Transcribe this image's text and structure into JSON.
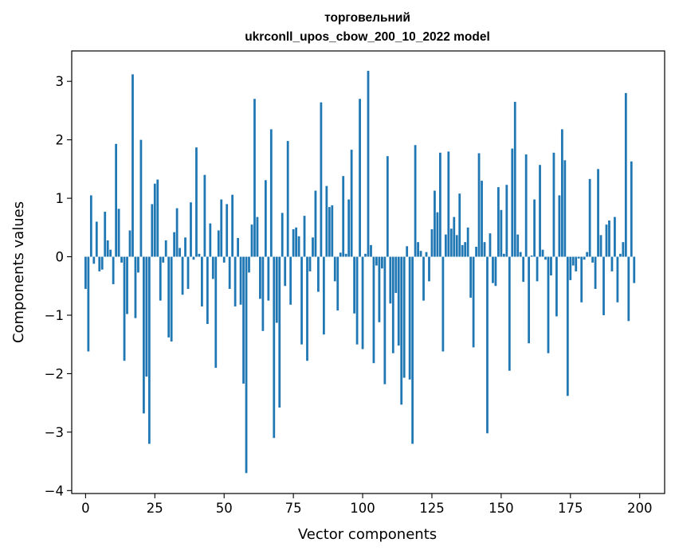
{
  "chart_data": {
    "type": "bar",
    "title_line1": "торговельний",
    "title_line2": "ukrconll_upos_cbow_200_10_2022 model",
    "xlabel": "Vector components",
    "ylabel": "Components values",
    "xlim": [
      -5,
      209
    ],
    "ylim": [
      -4.05,
      3.52
    ],
    "xticks": [
      0,
      25,
      50,
      75,
      100,
      125,
      150,
      175,
      200
    ],
    "yticks": [
      -4,
      -3,
      -2,
      -1,
      0,
      1,
      2,
      3
    ],
    "xtick_labels": [
      "0",
      "25",
      "50",
      "75",
      "100",
      "125",
      "150",
      "175",
      "200"
    ],
    "ytick_labels": [
      "−4",
      "−3",
      "−2",
      "−1",
      "0",
      "1",
      "2",
      "3"
    ],
    "bar_color": "#1f77b4",
    "values": [
      -0.55,
      -1.62,
      1.05,
      -0.12,
      0.6,
      -0.25,
      -0.22,
      0.77,
      0.28,
      0.12,
      -0.47,
      1.93,
      0.82,
      -0.1,
      -1.78,
      -0.98,
      0.45,
      3.12,
      -1.05,
      -0.27,
      2.0,
      -2.68,
      -2.05,
      -3.2,
      0.9,
      1.25,
      1.32,
      -0.75,
      -0.1,
      0.28,
      -1.38,
      -1.45,
      0.42,
      0.83,
      0.15,
      -0.65,
      0.33,
      -0.55,
      0.93,
      -0.05,
      1.87,
      0.05,
      -0.85,
      1.4,
      -1.15,
      0.57,
      -0.38,
      -1.9,
      0.45,
      0.98,
      -0.1,
      0.9,
      -0.55,
      1.06,
      -0.85,
      0.32,
      -0.82,
      -2.17,
      -3.7,
      -0.27,
      0.55,
      2.7,
      0.68,
      -0.72,
      -1.27,
      1.31,
      -0.75,
      2.18,
      -3.1,
      -1.13,
      -2.58,
      0.75,
      -0.5,
      1.98,
      -0.82,
      0.47,
      0.5,
      0.35,
      -1.5,
      0.7,
      -1.78,
      -0.25,
      0.33,
      1.13,
      -0.6,
      2.64,
      -1.33,
      1.21,
      0.85,
      0.88,
      -0.42,
      -0.92,
      0.07,
      1.38,
      0.05,
      0.98,
      1.83,
      -0.97,
      -1.5,
      2.7,
      -1.58,
      0.05,
      3.18,
      0.2,
      -1.82,
      -0.15,
      -1.12,
      -0.2,
      -2.18,
      1.72,
      -0.8,
      -1.65,
      -0.62,
      -1.52,
      -2.53,
      -2.07,
      0.18,
      -2.1,
      -3.2,
      1.91,
      0.25,
      0.1,
      -0.75,
      0.08,
      -0.42,
      0.47,
      1.13,
      0.76,
      1.78,
      -1.62,
      0.38,
      1.8,
      0.48,
      0.68,
      0.37,
      1.08,
      0.2,
      0.25,
      0.5,
      -0.7,
      -1.55,
      0.17,
      1.77,
      1.3,
      0.25,
      -3.02,
      0.4,
      -0.45,
      -0.5,
      1.19,
      0.8,
      0.05,
      1.23,
      -1.95,
      1.85,
      2.65,
      0.38,
      0.08,
      -0.43,
      1.75,
      -1.48,
      0.02,
      0.98,
      -0.42,
      1.57,
      0.12,
      -0.05,
      -1.65,
      -0.32,
      1.78,
      -1.02,
      1.05,
      2.18,
      1.65,
      -2.38,
      -0.4,
      -0.15,
      -0.25,
      -0.03,
      -0.78,
      -0.05,
      0.08,
      1.33,
      -0.1,
      -0.55,
      1.5,
      0.37,
      -1.0,
      0.55,
      0.62,
      -0.25,
      0.68,
      -0.78,
      0.05,
      0.25,
      2.8,
      -1.1,
      1.63,
      -0.45
    ]
  }
}
